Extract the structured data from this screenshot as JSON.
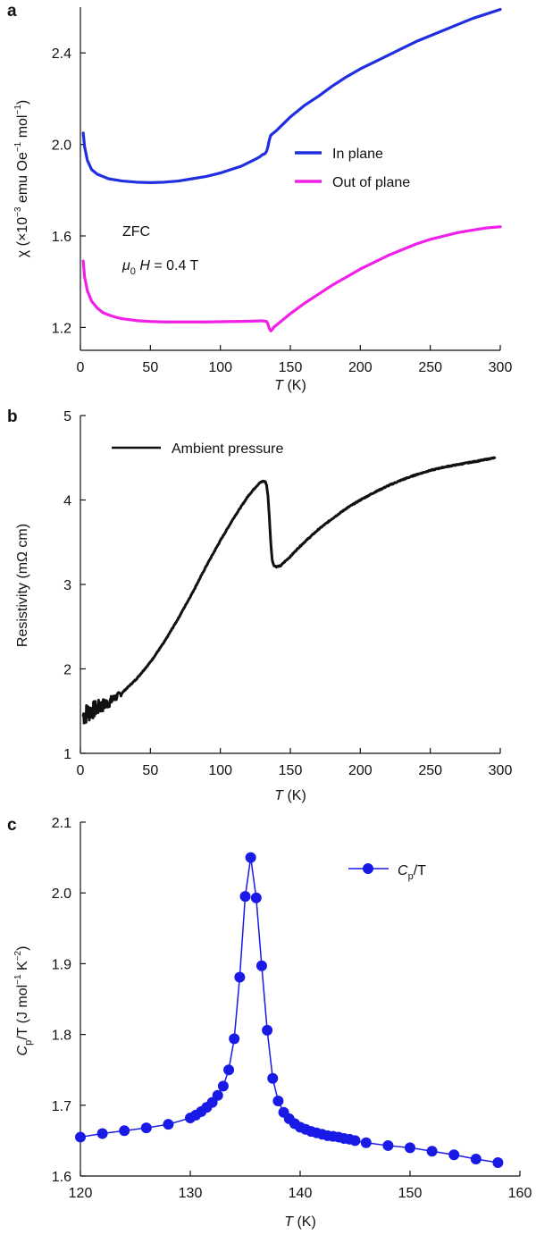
{
  "chart_data": [
    {
      "panel": "a",
      "type": "line",
      "xlabel_italic": "T",
      "xlabel_rest": " (K)",
      "ylabel_parts": [
        "χ (×10",
        "−3",
        " emu Oe",
        "−1",
        " mol",
        "−1",
        ")"
      ],
      "xlim": [
        0,
        300
      ],
      "ylim": [
        1.1,
        2.6
      ],
      "xticks": [
        0,
        50,
        100,
        150,
        200,
        250,
        300
      ],
      "xtick_labels": [
        "0",
        "50",
        "100",
        "150",
        "200",
        "250",
        "300"
      ],
      "yticks": [
        1.2,
        1.6,
        2.0,
        2.4
      ],
      "ytick_labels": [
        "1.2",
        "1.6",
        "2.0",
        "2.4"
      ],
      "legend_position": "center-right",
      "annotations": {
        "zfc": "ZFC",
        "field_mu": "μ",
        "field_sub": "0",
        "field_H": " H",
        "field_value": " = 0.4 T"
      },
      "series": [
        {
          "name": "In plane",
          "color": "#1f2fe0",
          "x": [
            2,
            3,
            5,
            8,
            12,
            16,
            20,
            25,
            30,
            40,
            50,
            60,
            70,
            80,
            90,
            100,
            110,
            115,
            120,
            125,
            128,
            130,
            132,
            133,
            134,
            135,
            136,
            138,
            140,
            145,
            150,
            160,
            170,
            180,
            190,
            200,
            210,
            220,
            230,
            240,
            250,
            260,
            270,
            280,
            290,
            300
          ],
          "y": [
            2.05,
            1.99,
            1.93,
            1.89,
            1.87,
            1.86,
            1.85,
            1.845,
            1.84,
            1.835,
            1.833,
            1.835,
            1.84,
            1.85,
            1.86,
            1.875,
            1.895,
            1.905,
            1.92,
            1.935,
            1.945,
            1.955,
            1.96,
            1.97,
            1.99,
            2.02,
            2.04,
            2.05,
            2.06,
            2.09,
            2.12,
            2.17,
            2.21,
            2.255,
            2.295,
            2.33,
            2.36,
            2.39,
            2.42,
            2.45,
            2.475,
            2.5,
            2.525,
            2.55,
            2.57,
            2.59
          ]
        },
        {
          "name": "Out of plane",
          "color": "#f020e8",
          "x": [
            2,
            3,
            5,
            8,
            12,
            16,
            20,
            25,
            30,
            40,
            50,
            60,
            70,
            80,
            90,
            100,
            110,
            120,
            125,
            130,
            133,
            134,
            135,
            136,
            137,
            138,
            140,
            145,
            150,
            160,
            170,
            180,
            190,
            200,
            210,
            220,
            230,
            240,
            250,
            260,
            270,
            280,
            290,
            300
          ],
          "y": [
            1.49,
            1.42,
            1.36,
            1.315,
            1.285,
            1.265,
            1.255,
            1.245,
            1.238,
            1.23,
            1.226,
            1.224,
            1.224,
            1.224,
            1.224,
            1.225,
            1.226,
            1.227,
            1.228,
            1.229,
            1.226,
            1.215,
            1.195,
            1.185,
            1.19,
            1.2,
            1.21,
            1.235,
            1.26,
            1.305,
            1.345,
            1.385,
            1.42,
            1.455,
            1.485,
            1.515,
            1.54,
            1.565,
            1.585,
            1.6,
            1.615,
            1.625,
            1.635,
            1.64
          ]
        }
      ]
    },
    {
      "panel": "b",
      "type": "line",
      "xlabel_italic": "T",
      "xlabel_rest": " (K)",
      "ylabel": "Resistivity (mΩ cm)",
      "xlim": [
        0,
        300
      ],
      "ylim": [
        1,
        5
      ],
      "xticks": [
        0,
        50,
        100,
        150,
        200,
        250,
        300
      ],
      "xtick_labels": [
        "0",
        "50",
        "100",
        "150",
        "200",
        "250",
        "300"
      ],
      "yticks": [
        1,
        2,
        3,
        4,
        5
      ],
      "ytick_labels": [
        "1",
        "2",
        "3",
        "4",
        "5"
      ],
      "legend_position": "top-left",
      "series": [
        {
          "name": "Ambient pressure",
          "color": "#111111",
          "noise_below_T": 30,
          "x": [
            2,
            5,
            10,
            15,
            20,
            25,
            30,
            40,
            50,
            60,
            70,
            80,
            90,
            100,
            110,
            120,
            125,
            128,
            130,
            132,
            133,
            134,
            135,
            136,
            137,
            138,
            140,
            143,
            146,
            150,
            155,
            160,
            170,
            180,
            190,
            200,
            210,
            220,
            230,
            240,
            250,
            260,
            270,
            280,
            290,
            296
          ],
          "y": [
            1.45,
            1.48,
            1.52,
            1.56,
            1.6,
            1.66,
            1.72,
            1.88,
            2.08,
            2.32,
            2.6,
            2.9,
            3.22,
            3.52,
            3.8,
            4.05,
            4.15,
            4.2,
            4.22,
            4.22,
            4.18,
            4.05,
            3.8,
            3.5,
            3.3,
            3.23,
            3.21,
            3.22,
            3.27,
            3.33,
            3.42,
            3.5,
            3.65,
            3.78,
            3.9,
            4.0,
            4.09,
            4.17,
            4.24,
            4.3,
            4.35,
            4.39,
            4.42,
            4.45,
            4.48,
            4.5
          ]
        }
      ]
    },
    {
      "panel": "c",
      "type": "scatter",
      "xlabel_italic": "T",
      "xlabel_rest": " (K)",
      "ylabel_parts": [
        "C",
        "p",
        "/T (J mol",
        "−1",
        " K",
        "−2",
        ")"
      ],
      "xlim": [
        120,
        160
      ],
      "ylim": [
        1.6,
        2.1
      ],
      "xticks": [
        120,
        130,
        140,
        150,
        160
      ],
      "xtick_labels": [
        "120",
        "130",
        "140",
        "150",
        "160"
      ],
      "yticks": [
        1.6,
        1.7,
        1.8,
        1.9,
        2.0,
        2.1
      ],
      "ytick_labels": [
        "1.6",
        "1.7",
        "1.8",
        "1.9",
        "2.0",
        "2.1"
      ],
      "legend_position": "top-right",
      "legend_parts": [
        "C",
        "p",
        "/T"
      ],
      "series": [
        {
          "name": "Cp/T",
          "color": "#1a1ae6",
          "x": [
            120,
            122,
            124,
            126,
            128,
            130,
            130.5,
            131,
            131.5,
            132,
            132.5,
            133,
            133.5,
            134,
            134.5,
            135,
            135.5,
            136,
            136.5,
            137,
            137.5,
            138,
            138.5,
            139,
            139.5,
            140,
            140.5,
            141,
            141.5,
            142,
            142.5,
            143,
            143.5,
            144,
            144.5,
            145,
            146,
            148,
            150,
            152,
            154,
            156,
            158
          ],
          "y": [
            1.655,
            1.66,
            1.664,
            1.668,
            1.673,
            1.682,
            1.686,
            1.691,
            1.697,
            1.704,
            1.714,
            1.727,
            1.75,
            1.794,
            1.881,
            1.995,
            2.05,
            1.993,
            1.897,
            1.806,
            1.738,
            1.706,
            1.69,
            1.681,
            1.674,
            1.669,
            1.666,
            1.663,
            1.661,
            1.659,
            1.657,
            1.656,
            1.655,
            1.653,
            1.652,
            1.65,
            1.647,
            1.643,
            1.64,
            1.635,
            1.63,
            1.624,
            1.619
          ]
        }
      ]
    }
  ]
}
